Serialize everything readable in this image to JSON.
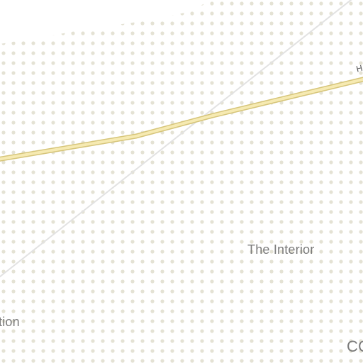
{
  "map": {
    "labels": {
      "region_interior": "The Interior",
      "region_partial_left": "tion",
      "region_partial_bottom_right": "CO",
      "road_partial_label": "H"
    },
    "colors": {
      "background": "#ffffff",
      "dot_pattern": "#e4e2d4",
      "highway_fill": "#f6eab2",
      "highway_casing": "#d6c57a",
      "secondary_road": "#e2e2e2",
      "label_text": "#7a7a7a"
    }
  }
}
